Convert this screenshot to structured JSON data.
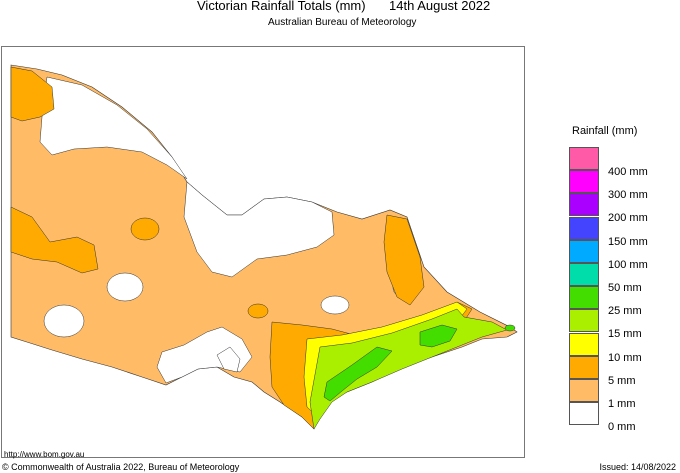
{
  "header": {
    "title": "Victorian Rainfall Totals (mm)",
    "date": "14th August 2022",
    "subtitle": "Australian Bureau of Meteorology"
  },
  "legend": {
    "title": "Rainfall (mm)",
    "items": [
      {
        "label": "400 mm",
        "color": "#ff5aa8"
      },
      {
        "label": "300 mm",
        "color": "#ff00ff"
      },
      {
        "label": "200 mm",
        "color": "#aa00ff"
      },
      {
        "label": "150 mm",
        "color": "#4444ff"
      },
      {
        "label": "100 mm",
        "color": "#00aaff"
      },
      {
        "label": "50 mm",
        "color": "#00ddaa"
      },
      {
        "label": "25 mm",
        "color": "#44dd00"
      },
      {
        "label": "15 mm",
        "color": "#aaee00"
      },
      {
        "label": "10 mm",
        "color": "#ffff00"
      },
      {
        "label": "5 mm",
        "color": "#ffaa00"
      },
      {
        "label": "1 mm",
        "color": "#ffbb66"
      },
      {
        "label": "0 mm",
        "color": "#ffffff"
      }
    ]
  },
  "footer": {
    "url": "http://www.bom.gov.au",
    "copyright": "© Commonwealth of Australia 2022, Bureau of Meteorology",
    "issued": "Issued: 14/08/2022"
  }
}
